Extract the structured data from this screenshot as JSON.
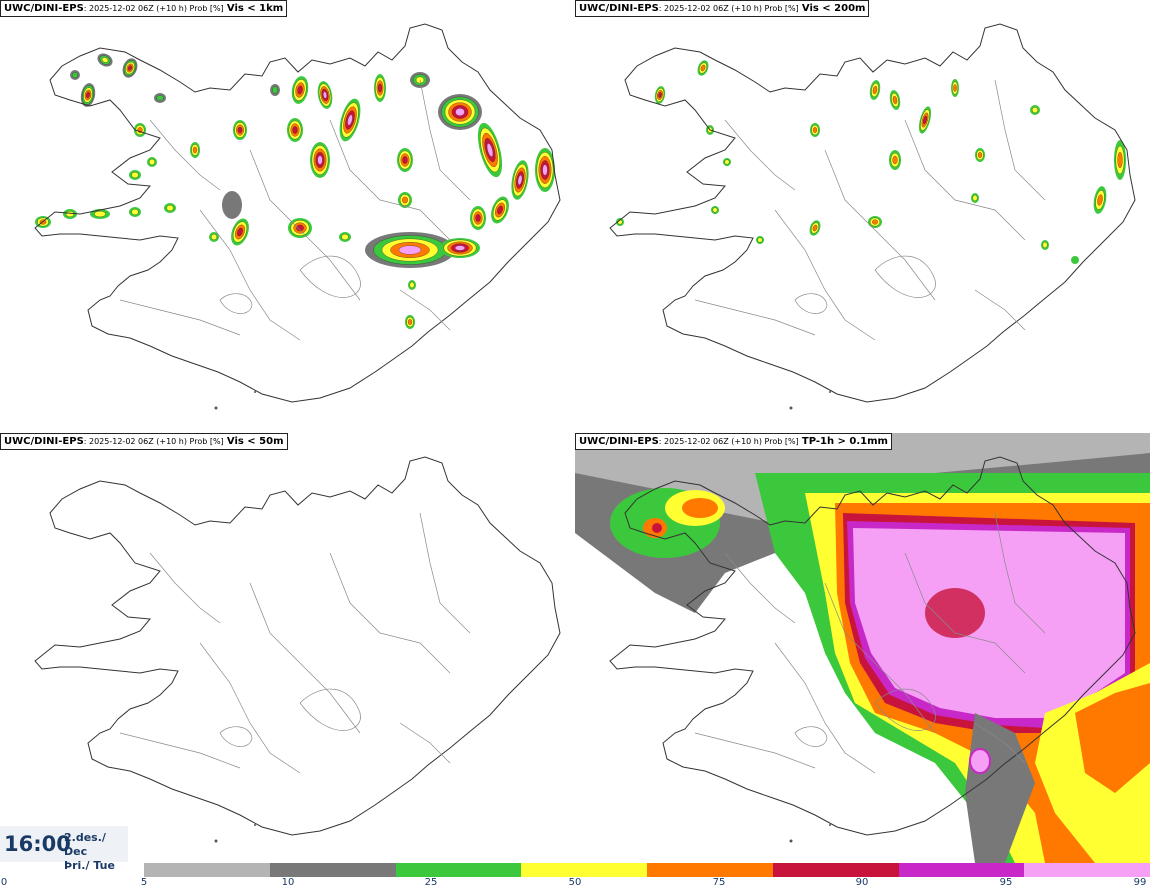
{
  "panels": [
    {
      "model": "UWC/DINI-EPS",
      "meta": ": 2025-12-02 06Z (+10 h) Prob [%]",
      "variable": "Vis < 1km"
    },
    {
      "model": "UWC/DINI-EPS",
      "meta": ": 2025-12-02 06Z (+10 h) Prob [%]",
      "variable": "Vis < 200m"
    },
    {
      "model": "UWC/DINI-EPS",
      "meta": ": 2025-12-02 06Z (+10 h) Prob [%]",
      "variable": "Vis < 50m"
    },
    {
      "model": "UWC/DINI-EPS",
      "meta": ": 2025-12-02 06Z (+10 h) Prob [%]",
      "variable": "TP-1h > 0.1mm"
    }
  ],
  "valid_time": {
    "time": "16:00",
    "date_line1": "2.des./ Dec",
    "date_line2": "Þri./ Tue"
  },
  "colorbar": {
    "ticks": [
      "0",
      "5",
      "10",
      "25",
      "50",
      "75",
      "90",
      "95",
      "99"
    ],
    "colors": [
      "#b4b4b4",
      "#787878",
      "#3cc83c",
      "#ffff32",
      "#ff7800",
      "#c8143c",
      "#c828c8",
      "#f5a0f5"
    ]
  }
}
